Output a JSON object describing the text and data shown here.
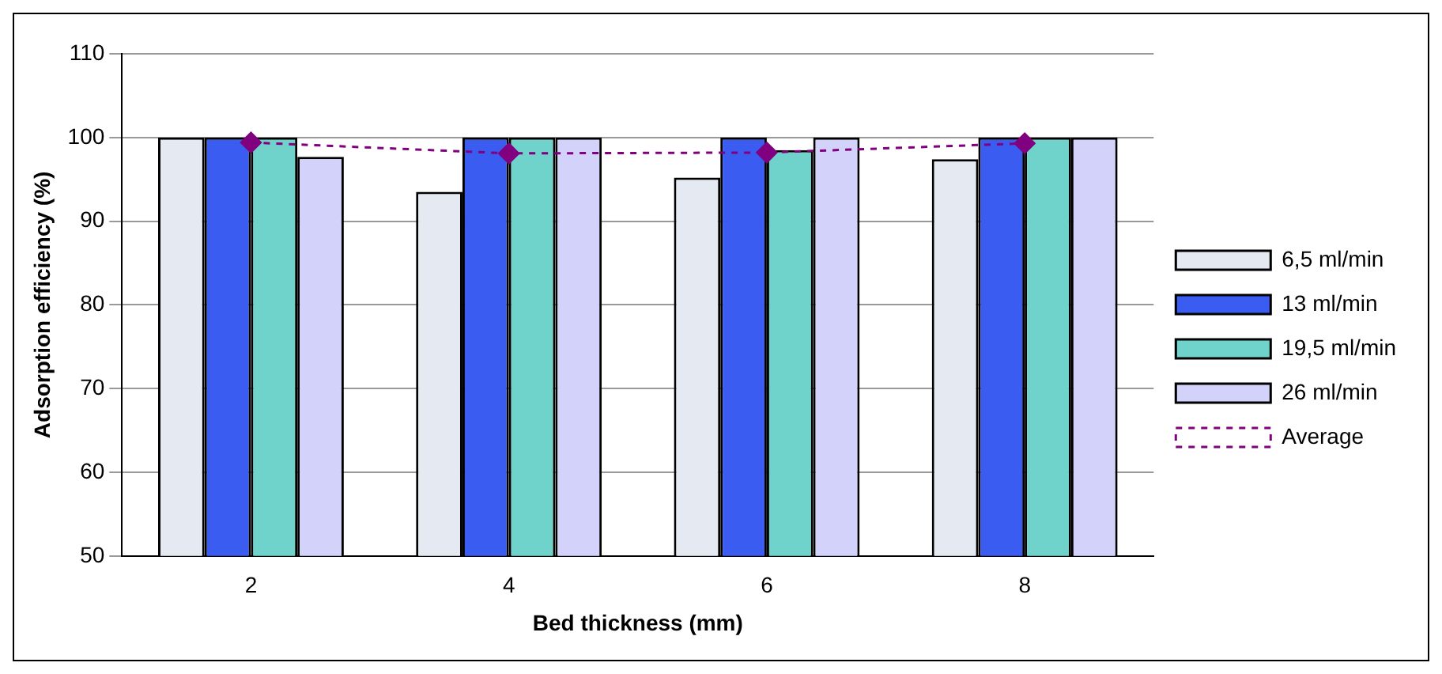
{
  "chart_data": {
    "type": "bar",
    "xlabel": "Bed thickness (mm)",
    "ylabel": "Adsorption efficiency (%)",
    "categories": [
      "2",
      "4",
      "6",
      "8"
    ],
    "series": [
      {
        "name": "6,5 ml/min",
        "color": "#e4e9f2",
        "values": [
          100,
          93.5,
          95.2,
          97.4
        ]
      },
      {
        "name": "13 ml/min",
        "color": "#3a5cf0",
        "values": [
          100,
          100,
          100,
          100
        ]
      },
      {
        "name": "19,5 ml/min",
        "color": "#6fd3cb",
        "values": [
          100,
          100,
          98.5,
          100
        ]
      },
      {
        "name": "26 ml/min",
        "color": "#d2d2fa",
        "values": [
          97.7,
          100,
          100,
          100
        ]
      },
      {
        "name": "Average",
        "type": "line",
        "color": "#800080",
        "values": [
          99.4,
          98.1,
          98.2,
          99.3
        ],
        "marker": "diamond",
        "line_style": "dashed"
      }
    ],
    "ylim": [
      50,
      110
    ],
    "yticks": [
      50,
      60,
      70,
      80,
      90,
      100,
      110
    ],
    "grid": "y",
    "legend": "right"
  }
}
